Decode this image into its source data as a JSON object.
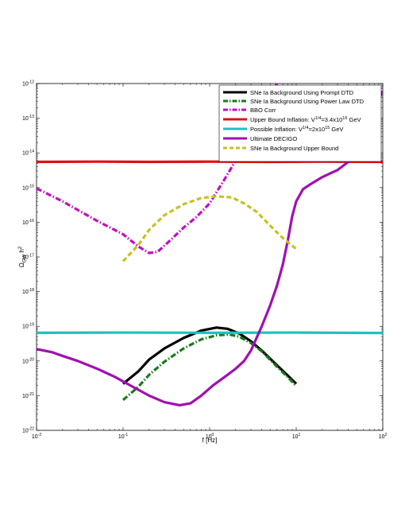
{
  "chart_data": {
    "type": "line",
    "x_scale": "log",
    "y_scale": "log",
    "xlim": [
      0.01,
      100
    ],
    "ylim": [
      1e-22,
      1e-12
    ],
    "grid": false,
    "legend_position": "top-right",
    "xlabel": "f [Hz]",
    "ylabel_text": "Ω",
    "ylabel_sub": "GW",
    "ylabel_tail": " h",
    "ylabel_sup": "2",
    "x_ticks": [
      {
        "value": 0.01,
        "base": "10",
        "exp": "-2"
      },
      {
        "value": 0.1,
        "base": "10",
        "exp": "-1"
      },
      {
        "value": 1,
        "base": "10",
        "exp": "0"
      },
      {
        "value": 10,
        "base": "10",
        "exp": "1"
      },
      {
        "value": 100,
        "base": "10",
        "exp": "2"
      }
    ],
    "y_ticks": [
      {
        "value": 1e-22,
        "base": "10",
        "exp": "-22"
      },
      {
        "value": 1e-21,
        "base": "10",
        "exp": "-21"
      },
      {
        "value": 1e-20,
        "base": "10",
        "exp": "-20"
      },
      {
        "value": 1e-19,
        "base": "10",
        "exp": "-19"
      },
      {
        "value": 1e-18,
        "base": "10",
        "exp": "-18"
      },
      {
        "value": 1e-17,
        "base": "10",
        "exp": "-17"
      },
      {
        "value": 1e-16,
        "base": "10",
        "exp": "-16"
      },
      {
        "value": 1e-15,
        "base": "10",
        "exp": "-15"
      },
      {
        "value": 1e-14,
        "base": "10",
        "exp": "-14"
      },
      {
        "value": 1e-13,
        "base": "10",
        "exp": "-13"
      },
      {
        "value": 1e-12,
        "base": "10",
        "exp": "-12"
      }
    ],
    "series": [
      {
        "id": "prompt",
        "name": "SNe Ia Background Using Prompt DTD",
        "color": "#000000",
        "dash": "solid",
        "points": [
          [
            0.1,
            2.2e-21
          ],
          [
            0.15,
            5e-21
          ],
          [
            0.2,
            1.1e-20
          ],
          [
            0.3,
            2.3e-20
          ],
          [
            0.5,
            4.6e-20
          ],
          [
            0.8,
            7.5e-20
          ],
          [
            1.2,
            9.2e-20
          ],
          [
            1.6,
            8.5e-20
          ],
          [
            2.2,
            6.2e-20
          ],
          [
            3,
            3.7e-20
          ],
          [
            4,
            2e-20
          ],
          [
            6,
            7.5e-21
          ],
          [
            8,
            3.8e-21
          ],
          [
            10,
            2.2e-21
          ]
        ]
      },
      {
        "id": "powerlaw",
        "name": "SNe Ia Background Using Power Law DTD",
        "color": "#1a7a1a",
        "dash": "dashdot",
        "points": [
          [
            0.1,
            7.5e-22
          ],
          [
            0.15,
            1.8e-21
          ],
          [
            0.2,
            4e-21
          ],
          [
            0.3,
            9.5e-21
          ],
          [
            0.5,
            2.3e-20
          ],
          [
            0.8,
            4.2e-20
          ],
          [
            1.2,
            5.5e-20
          ],
          [
            1.7,
            5.8e-20
          ],
          [
            2.2,
            5e-20
          ],
          [
            3,
            3.3e-20
          ],
          [
            4,
            1.9e-20
          ],
          [
            6,
            6.8e-21
          ],
          [
            8,
            3.4e-21
          ],
          [
            10,
            1.9e-21
          ]
        ]
      },
      {
        "id": "bbo",
        "name": "BBO Corr",
        "color": "#c010c0",
        "dash": "dashdot",
        "points": [
          [
            0.01,
            9.5e-16
          ],
          [
            0.02,
            4e-16
          ],
          [
            0.05,
            1.1e-16
          ],
          [
            0.1,
            4.5e-17
          ],
          [
            0.15,
            2e-17
          ],
          [
            0.2,
            1.3e-17
          ],
          [
            0.25,
            1.4e-17
          ],
          [
            0.35,
            3e-17
          ],
          [
            0.5,
            7e-17
          ],
          [
            0.7,
            1.4e-16
          ],
          [
            1,
            3.5e-16
          ],
          [
            1.5,
            1.8e-15
          ],
          [
            2,
            6e-15
          ],
          [
            3,
            3.5e-14
          ],
          [
            4,
            1.3e-13
          ],
          [
            5,
            5e-13
          ],
          [
            6,
            1e-12
          ]
        ]
      },
      {
        "id": "upper_inflation",
        "name": "Upper Bound Inflation: V^{1/4}=3.4x10^{16} GeV",
        "legend_parts": [
          "Upper Bound Inflation: V",
          "1/4",
          "=3.4x10",
          "16",
          " GeV"
        ],
        "color": "#e01010",
        "dash": "solid",
        "points": [
          [
            0.01,
            5.5e-15
          ],
          [
            0.05,
            5.6e-15
          ],
          [
            0.2,
            5.5e-15
          ],
          [
            1,
            5.6e-15
          ],
          [
            5,
            5.5e-15
          ],
          [
            20,
            5.6e-15
          ],
          [
            100,
            5.5e-15
          ]
        ]
      },
      {
        "id": "possible_inflation",
        "name": "Possible Inflation: V^{1/4}=2x10^{15} GeV",
        "legend_parts": [
          "Possible Inflation: V",
          "1/4",
          "=2x10",
          "15",
          " GeV"
        ],
        "color": "#20c0c0",
        "dash": "solid",
        "points": [
          [
            0.01,
            6.5e-20
          ],
          [
            0.1,
            6.6e-20
          ],
          [
            1,
            6.5e-20
          ],
          [
            10,
            6.6e-20
          ],
          [
            100,
            6.4e-20
          ]
        ]
      },
      {
        "id": "decigo",
        "name": "Ultimate DECIGO",
        "color": "#a010b0",
        "dash": "solid",
        "points": [
          [
            0.01,
            2.2e-20
          ],
          [
            0.015,
            1.8e-20
          ],
          [
            0.02,
            1.4e-20
          ],
          [
            0.03,
            1e-20
          ],
          [
            0.05,
            6e-21
          ],
          [
            0.08,
            3.5e-21
          ],
          [
            0.12,
            2e-21
          ],
          [
            0.2,
            1e-21
          ],
          [
            0.3,
            6.5e-22
          ],
          [
            0.45,
            5.3e-22
          ],
          [
            0.6,
            6e-22
          ],
          [
            0.8,
            1e-21
          ],
          [
            1.1,
            2e-21
          ],
          [
            1.5,
            3.5e-21
          ],
          [
            2,
            6e-21
          ],
          [
            2.5,
            1e-20
          ],
          [
            3,
            2e-20
          ],
          [
            4,
            1e-19
          ],
          [
            5,
            4e-19
          ],
          [
            6,
            1.5e-18
          ],
          [
            7,
            6e-18
          ],
          [
            8,
            3e-17
          ],
          [
            9,
            1.5e-16
          ],
          [
            10,
            4e-16
          ],
          [
            12,
            9e-16
          ],
          [
            15,
            1.3e-15
          ],
          [
            20,
            2e-15
          ],
          [
            25,
            2.6e-15
          ],
          [
            30,
            3.2e-15
          ],
          [
            40,
            5.5e-15
          ],
          [
            50,
            1e-14
          ],
          [
            60,
            2e-14
          ],
          [
            70,
            6e-14
          ],
          [
            80,
            1.4e-13
          ],
          [
            90,
            3.5e-13
          ],
          [
            100,
            6e-13
          ]
        ]
      },
      {
        "id": "upper_bound",
        "name": "SNe Ia Background Upper Bound",
        "color": "#c8c020",
        "dash": "dashed",
        "points": [
          [
            0.1,
            7.5e-18
          ],
          [
            0.15,
            2.2e-17
          ],
          [
            0.2,
            6e-17
          ],
          [
            0.3,
            1.6e-16
          ],
          [
            0.5,
            3.3e-16
          ],
          [
            0.8,
            5e-16
          ],
          [
            1.2,
            5.6e-16
          ],
          [
            1.8,
            5.2e-16
          ],
          [
            2.5,
            3.5e-16
          ],
          [
            3.5,
            2e-16
          ],
          [
            5,
            8e-17
          ],
          [
            7,
            3.5e-17
          ],
          [
            10,
            1.7e-17
          ]
        ]
      }
    ]
  }
}
